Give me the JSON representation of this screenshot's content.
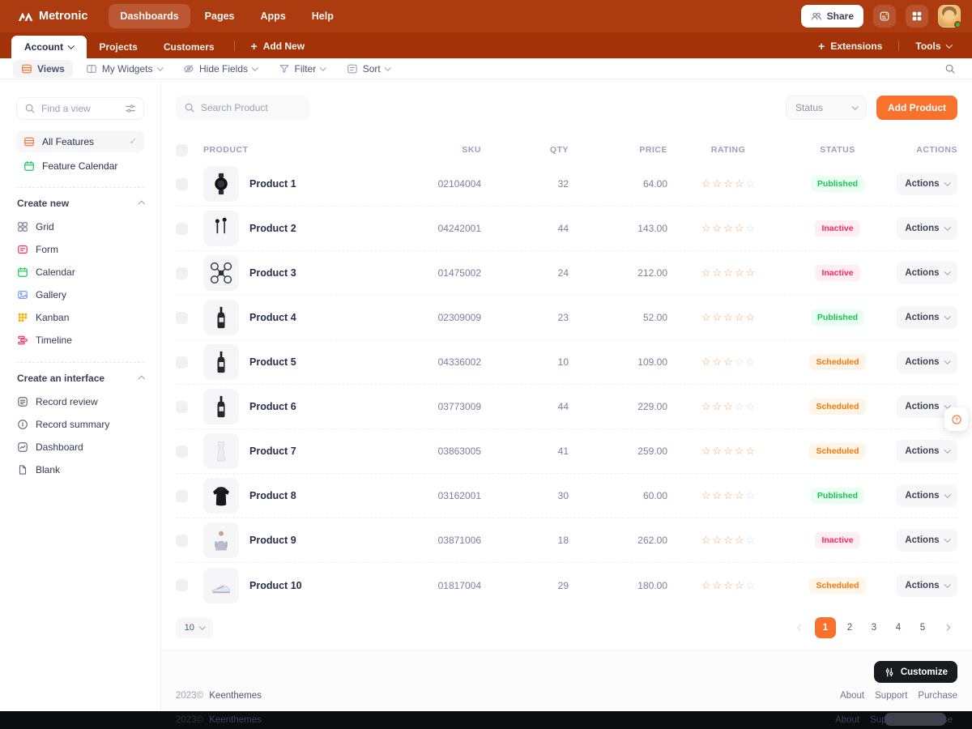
{
  "brand": {
    "name": "Metronic"
  },
  "header": {
    "nav": [
      {
        "label": "Dashboards",
        "active": true
      },
      {
        "label": "Pages",
        "active": false
      },
      {
        "label": "Apps",
        "active": false
      },
      {
        "label": "Help",
        "active": false
      }
    ],
    "share_label": "Share"
  },
  "menubar": {
    "tabs": [
      {
        "label": "Account",
        "active": true,
        "caret": true
      },
      {
        "label": "Projects",
        "active": false
      },
      {
        "label": "Customers",
        "active": false
      }
    ],
    "add_new_label": "Add New",
    "extensions_label": "Extensions",
    "tools_label": "Tools"
  },
  "toolbar": {
    "items": [
      {
        "label": "Views",
        "icon": "rows",
        "active": true,
        "caret": false
      },
      {
        "label": "My Widgets",
        "icon": "columns",
        "active": false,
        "caret": true
      },
      {
        "label": "Hide Fields",
        "icon": "eye-slash",
        "active": false,
        "caret": true
      },
      {
        "label": "Filter",
        "icon": "funnel",
        "active": false,
        "caret": true
      },
      {
        "label": "Sort",
        "icon": "sort",
        "active": false,
        "caret": true
      }
    ]
  },
  "sidebar": {
    "find_placeholder": "Find a view",
    "views": [
      {
        "label": "All Features",
        "icon": "rows",
        "color": "#f8722d",
        "active": true
      },
      {
        "label": "Feature Calendar",
        "icon": "calendar",
        "color": "#17c653",
        "active": false
      }
    ],
    "sections": [
      {
        "title": "Create new",
        "items": [
          {
            "label": "Grid",
            "icon": "grid",
            "color": "#7e8299"
          },
          {
            "label": "Form",
            "icon": "form",
            "color": "#f8285a"
          },
          {
            "label": "Calendar",
            "icon": "calendar",
            "color": "#17c653"
          },
          {
            "label": "Gallery",
            "icon": "gallery",
            "color": "#6e9bf5"
          },
          {
            "label": "Kanban",
            "icon": "kanban",
            "color": "#f6b100"
          },
          {
            "label": "Timeline",
            "icon": "timeline",
            "color": "#f8285a"
          }
        ]
      },
      {
        "title": "Create an interface",
        "items": [
          {
            "label": "Record review",
            "icon": "list",
            "color": "#636a80"
          },
          {
            "label": "Record summary",
            "icon": "gauge",
            "color": "#636a80"
          },
          {
            "label": "Dashboard",
            "icon": "chart",
            "color": "#636a80"
          },
          {
            "label": "Blank",
            "icon": "file",
            "color": "#636a80"
          }
        ]
      }
    ]
  },
  "content": {
    "search_placeholder": "Search Product",
    "status_filter_label": "Status",
    "add_product_label": "Add Product",
    "table": {
      "columns": [
        "PRODUCT",
        "SKU",
        "QTY",
        "PRICE",
        "RATING",
        "STATUS",
        "ACTIONS"
      ],
      "actions_label": "Actions",
      "rows": [
        {
          "name": "Product 1",
          "sku": "02104004",
          "qty": "32",
          "price": "64.00",
          "rating": 4,
          "status": "Published",
          "status_type": "published",
          "image": "watch"
        },
        {
          "name": "Product 2",
          "sku": "04242001",
          "qty": "44",
          "price": "143.00",
          "rating": 4,
          "status": "Inactive",
          "status_type": "inactive",
          "image": "earbuds"
        },
        {
          "name": "Product 3",
          "sku": "01475002",
          "qty": "24",
          "price": "212.00",
          "rating": 5,
          "status": "Inactive",
          "status_type": "inactive",
          "image": "drone"
        },
        {
          "name": "Product 4",
          "sku": "02309009",
          "qty": "23",
          "price": "52.00",
          "rating": 5,
          "status": "Published",
          "status_type": "published",
          "image": "bottle"
        },
        {
          "name": "Product 5",
          "sku": "04336002",
          "qty": "10",
          "price": "109.00",
          "rating": 3,
          "status": "Scheduled",
          "status_type": "scheduled",
          "image": "bottle"
        },
        {
          "name": "Product 6",
          "sku": "03773009",
          "qty": "44",
          "price": "229.00",
          "rating": 3,
          "status": "Scheduled",
          "status_type": "scheduled",
          "image": "bottle"
        },
        {
          "name": "Product 7",
          "sku": "03863005",
          "qty": "41",
          "price": "259.00",
          "rating": 5,
          "status": "Scheduled",
          "status_type": "scheduled",
          "image": "dress"
        },
        {
          "name": "Product 8",
          "sku": "03162001",
          "qty": "30",
          "price": "60.00",
          "rating": 4,
          "status": "Published",
          "status_type": "published",
          "image": "jacket"
        },
        {
          "name": "Product 9",
          "sku": "03871006",
          "qty": "18",
          "price": "262.00",
          "rating": 4,
          "status": "Inactive",
          "status_type": "inactive",
          "image": "hoodie"
        },
        {
          "name": "Product 10",
          "sku": "01817004",
          "qty": "29",
          "price": "180.00",
          "rating": 4,
          "status": "Scheduled",
          "status_type": "scheduled",
          "image": "sneaker"
        }
      ]
    },
    "pagination": {
      "page_size": "10",
      "pages": [
        "1",
        "2",
        "3",
        "4",
        "5"
      ],
      "current": "1"
    }
  },
  "footer": {
    "year": "2023©",
    "company": "Keenthemes",
    "links": [
      "About",
      "Support",
      "Purchase"
    ],
    "customize_label": "Customize"
  },
  "colors": {
    "header_bg": "#ad3b10",
    "menubar_bg": "#a23208",
    "accent": "#f8722d",
    "published": "#17c653",
    "inactive": "#f8285a",
    "scheduled": "#f6780a",
    "star_on": "#f2a661",
    "star_off": "#d5d9e2"
  }
}
